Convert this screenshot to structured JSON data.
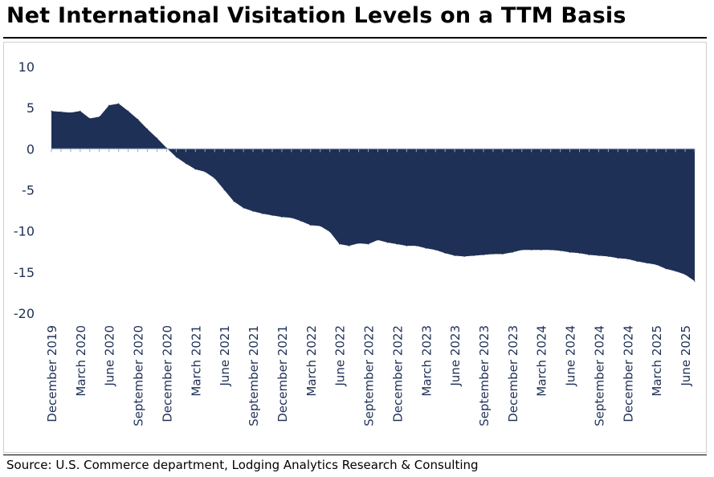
{
  "header": {
    "title": "Net International Visitation Levels on a TTM Basis"
  },
  "footer": {
    "source": "Source: U.S. Commerce department, Lodging Analytics Research & Consulting"
  },
  "chart_data": {
    "type": "area",
    "title": "Net International Visitation Levels on a TTM Basis",
    "xlabel": "",
    "ylabel": "",
    "ylim": [
      -20,
      10
    ],
    "yticks": [
      10,
      5,
      0,
      -5,
      -10,
      -15,
      -20
    ],
    "grid": false,
    "legend": "none",
    "fill_color": "#1f3056",
    "zero_line_color": "#9aa6bd",
    "categories": [
      "December 2019",
      "January 2020",
      "February 2020",
      "March 2020",
      "April 2020",
      "May 2020",
      "June 2020",
      "July 2020",
      "August 2020",
      "September 2020",
      "October 2020",
      "November 2020",
      "December 2020",
      "January 2021",
      "February 2021",
      "March 2021",
      "April 2021",
      "May 2021",
      "June 2021",
      "July 2021",
      "August 2021",
      "September 2021",
      "October 2021",
      "November 2021",
      "December 2021",
      "January 2022",
      "February 2022",
      "March 2022",
      "April 2022",
      "May 2022",
      "June 2022",
      "July 2022",
      "August 2022",
      "September 2022",
      "October 2022",
      "November 2022",
      "December 2022",
      "January 2023",
      "February 2023",
      "March 2023",
      "April 2023",
      "May 2023",
      "June 2023",
      "July 2023",
      "August 2023",
      "September 2023",
      "October 2023",
      "November 2023",
      "December 2023",
      "January 2024",
      "February 2024",
      "March 2024",
      "April 2024",
      "May 2024",
      "June 2024",
      "July 2024",
      "August 2024",
      "September 2024",
      "October 2024",
      "November 2024",
      "December 2024",
      "January 2025",
      "February 2025",
      "March 2025",
      "April 2025",
      "May 2025",
      "June 2025",
      "July 2025"
    ],
    "tick_labels": [
      "December 2019",
      "March 2020",
      "June 2020",
      "September 2020",
      "December 2020",
      "March 2021",
      "June 2021",
      "September 2021",
      "December 2021",
      "March 2022",
      "June 2022",
      "September 2022",
      "December 2022",
      "March 2023",
      "June 2023",
      "September 2023",
      "December 2023",
      "March 2024",
      "June 2024",
      "September 2024",
      "December 2024",
      "March 2025",
      "June 2025"
    ],
    "series": [
      {
        "values": [
          4.6,
          4.5,
          4.4,
          4.6,
          3.7,
          3.9,
          5.3,
          5.5,
          4.6,
          3.6,
          2.4,
          1.3,
          0.1,
          -1.0,
          -1.8,
          -2.5,
          -2.8,
          -3.6,
          -5.0,
          -6.4,
          -7.2,
          -7.6,
          -7.9,
          -8.1,
          -8.3,
          -8.4,
          -8.8,
          -9.3,
          -9.4,
          -10.1,
          -11.6,
          -11.8,
          -11.5,
          -11.6,
          -11.1,
          -11.4,
          -11.6,
          -11.8,
          -11.8,
          -12.1,
          -12.3,
          -12.7,
          -13.0,
          -13.1,
          -13.0,
          -12.9,
          -12.8,
          -12.8,
          -12.6,
          -12.3,
          -12.3,
          -12.3,
          -12.3,
          -12.4,
          -12.6,
          -12.7,
          -12.9,
          -13.0,
          -13.1,
          -13.3,
          -13.4,
          -13.7,
          -13.9,
          -14.1,
          -14.6,
          -14.9,
          -15.3,
          -16.1
        ]
      }
    ]
  }
}
